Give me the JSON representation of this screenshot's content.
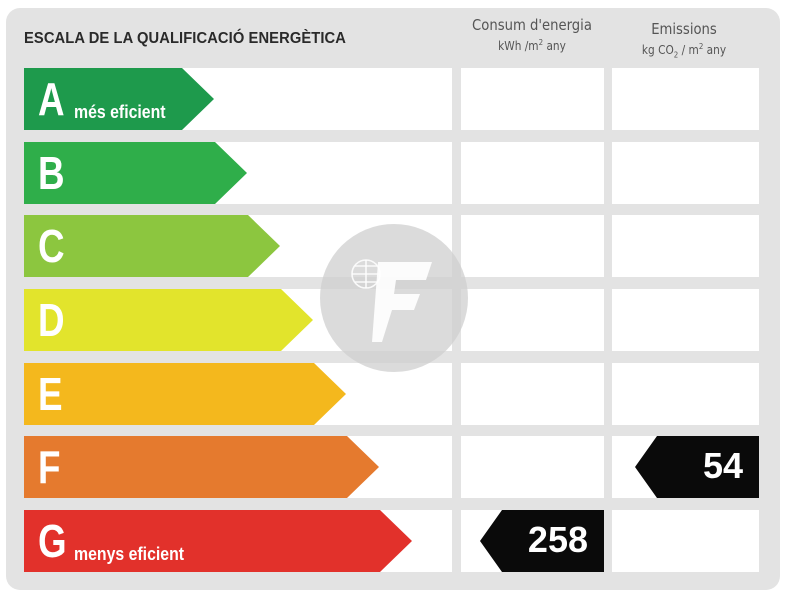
{
  "header": {
    "title": "ESCALA DE LA QUALIFICACIÓ ENERGÈTICA",
    "consum_line1": "Consum d'energia",
    "consum_line2_prefix": "kWh /m",
    "consum_line2_sup": "2",
    "consum_line2_suffix": " any",
    "emissions_line1": "Emissions",
    "emissions_line2_prefix": "kg CO",
    "emissions_line2_sub": "2",
    "emissions_line2_mid": " / m",
    "emissions_line2_sup": "2",
    "emissions_line2_suffix": " any"
  },
  "ratings": [
    {
      "letter": "A",
      "sublabel": "més eficient",
      "color": "#1e9a4c"
    },
    {
      "letter": "B",
      "sublabel": "",
      "color": "#2fae4a"
    },
    {
      "letter": "C",
      "sublabel": "",
      "color": "#8cc63f"
    },
    {
      "letter": "D",
      "sublabel": "",
      "color": "#e2e42c"
    },
    {
      "letter": "E",
      "sublabel": "",
      "color": "#f4b81d"
    },
    {
      "letter": "F",
      "sublabel": "",
      "color": "#e57a2e"
    },
    {
      "letter": "G",
      "sublabel": "menys eficient",
      "color": "#e2312b"
    }
  ],
  "consum": {
    "value": "258",
    "rating": "G"
  },
  "emissions": {
    "value": "54",
    "rating": "F"
  },
  "marker_color": "#0a0a0a",
  "watermark_icon": "logo-watermark"
}
